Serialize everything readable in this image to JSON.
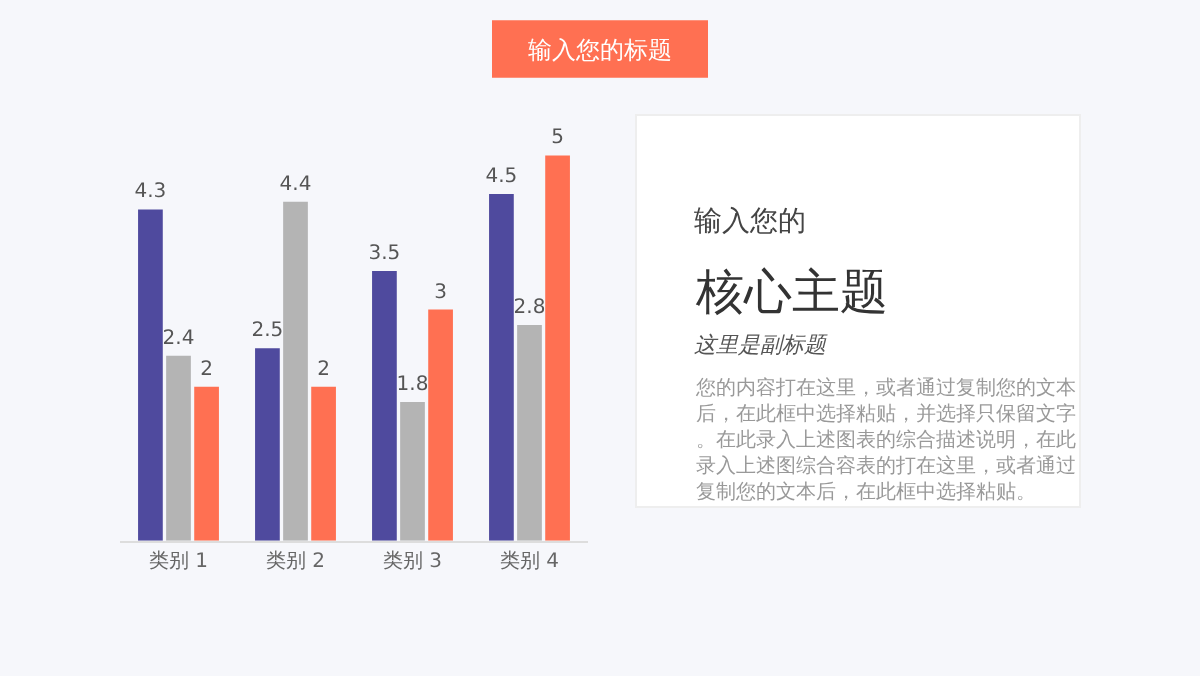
{
  "chart_data": [
    {
      "type": "bar",
      "title": "输入您的标题",
      "categories": [
        "类别 1",
        "类别 2",
        "类别 3",
        "类别 4"
      ],
      "series": [
        {
          "color": "#4f4a9e",
          "values": [
            4.3,
            2.5,
            3.5,
            4.5
          ]
        },
        {
          "color": "#b4b4b4",
          "values": [
            2.4,
            4.4,
            1.8,
            2.8
          ]
        },
        {
          "color": "#ff7052",
          "values": [
            2,
            2,
            3,
            5
          ]
        }
      ],
      "data_labels": true,
      "tick_labels": "x",
      "grid": false
    },
    {
      "type": "other",
      "annotations": [
        "输入您的",
        "核心主题",
        "这里是副标题",
        "您的内容打在这里，或者通过复制您的文本后，在此框中选择粘贴，并选择只保留文字。在此录入上述图表的综合描述说明，在此录入上述图综合容表的打在这里，或者通过复制您的文本后，在此框中选择粘贴。"
      ]
    }
  ]
}
